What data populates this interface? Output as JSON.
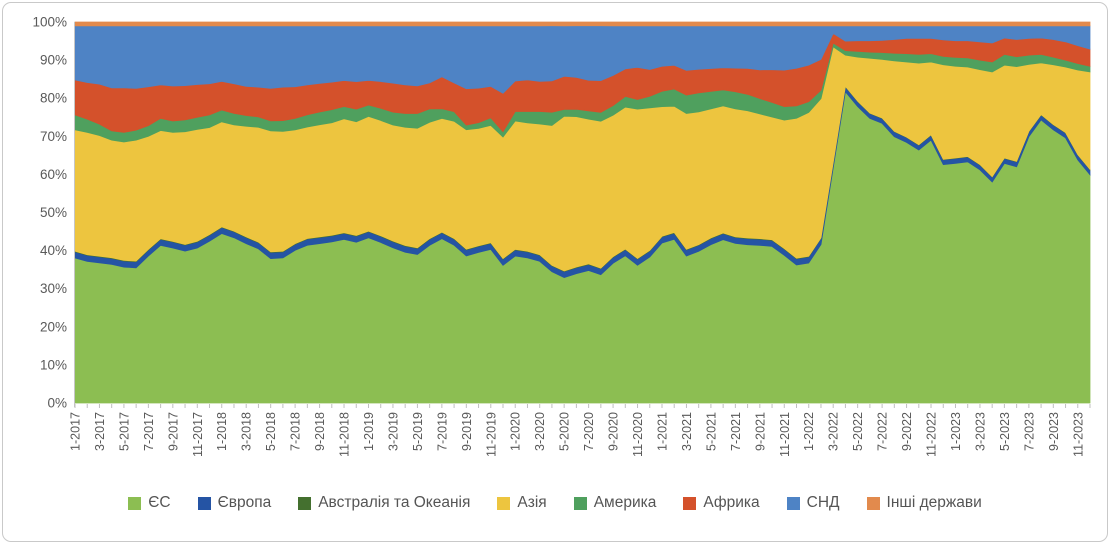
{
  "y_axis": {
    "ticks": [
      "0%",
      "10%",
      "20%",
      "30%",
      "40%",
      "50%",
      "60%",
      "70%",
      "80%",
      "90%",
      "100%"
    ]
  },
  "colors": {
    "axis_text": "#595959",
    "legend_text": "#555555",
    "axis_line": "#c6c6c6",
    "tick_line": "#bfbfbf",
    "card_border": "#c9c9c9"
  },
  "chart_data": {
    "type": "area",
    "stacking": "percent",
    "title": "",
    "xlabel": "",
    "ylabel": "",
    "ylim": [
      0,
      100
    ],
    "grid": false,
    "legend_position": "bottom",
    "x_label_every": 2,
    "x": [
      "1-2017",
      "2-2017",
      "3-2017",
      "4-2017",
      "5-2017",
      "6-2017",
      "7-2017",
      "8-2017",
      "9-2017",
      "10-2017",
      "11-2017",
      "12-2017",
      "1-2018",
      "2-2018",
      "3-2018",
      "4-2018",
      "5-2018",
      "6-2018",
      "7-2018",
      "8-2018",
      "9-2018",
      "10-2018",
      "11-2018",
      "12-2018",
      "1-2019",
      "2-2019",
      "3-2019",
      "4-2019",
      "5-2019",
      "6-2019",
      "7-2019",
      "8-2019",
      "9-2019",
      "10-2019",
      "11-2019",
      "12-2019",
      "1-2020",
      "2-2020",
      "3-2020",
      "4-2020",
      "5-2020",
      "6-2020",
      "7-2020",
      "8-2020",
      "9-2020",
      "10-2020",
      "11-2020",
      "12-2020",
      "1-2021",
      "2-2021",
      "3-2021",
      "4-2021",
      "5-2021",
      "6-2021",
      "7-2021",
      "8-2021",
      "9-2021",
      "10-2021",
      "11-2021",
      "12-2021",
      "1-2022",
      "2-2022",
      "3-2022",
      "4-2022",
      "5-2022",
      "6-2022",
      "7-2022",
      "8-2022",
      "9-2022",
      "10-2022",
      "11-2022",
      "12-2022",
      "1-2023",
      "2-2023",
      "3-2023",
      "4-2023",
      "5-2023",
      "6-2023",
      "7-2023",
      "8-2023",
      "9-2023",
      "10-2023",
      "11-2023",
      "12-2023"
    ],
    "series": [
      {
        "name": "ЄС",
        "color": "#8CBE52",
        "values": [
          38.1,
          37.2,
          36.8,
          36.4,
          35.7,
          35.5,
          38.6,
          41.4,
          40.7,
          39.9,
          40.7,
          42.5,
          44.5,
          43.4,
          41.6,
          40.3,
          37.7,
          38.1,
          39.9,
          41.2,
          41.6,
          42.1,
          42.8,
          42.1,
          43.4,
          42.1,
          40.7,
          39.4,
          38.6,
          41.2,
          43.8,
          41.2,
          38.4,
          39.4,
          40.1,
          35.9,
          38.6,
          38.1,
          37.5,
          35.5,
          33.3,
          34.6,
          35.5,
          34.4,
          37.2,
          38.6,
          35.9,
          38.1,
          41.6,
          42.8,
          38.6,
          39.9,
          41.6,
          42.9,
          41.9,
          41.4,
          41.2,
          40.7,
          38.4,
          35.9,
          36.4,
          41.2,
          61.7,
          81.7,
          77.8,
          74.7,
          73.4,
          69.9,
          68.4,
          66.4,
          69.0,
          62.5,
          62.9,
          63.3,
          61.2,
          58.0,
          62.9,
          62.0,
          69.9,
          74.3,
          71.7,
          69.6,
          63.8,
          59.9
        ]
      },
      {
        "name": "Європа",
        "color": "#2554A4",
        "values": [
          1.6,
          1.6,
          1.6,
          1.6,
          1.6,
          1.6,
          1.6,
          1.6,
          1.6,
          1.6,
          1.6,
          1.6,
          1.6,
          1.6,
          1.6,
          1.6,
          1.6,
          1.6,
          1.6,
          1.6,
          1.6,
          1.6,
          1.6,
          1.6,
          1.6,
          1.6,
          1.6,
          1.6,
          1.6,
          1.6,
          1.6,
          1.6,
          1.6,
          1.6,
          1.6,
          1.6,
          1.6,
          1.6,
          1.6,
          1.6,
          1.6,
          1.6,
          1.6,
          1.6,
          1.6,
          1.6,
          1.6,
          1.6,
          1.6,
          1.6,
          1.6,
          1.6,
          1.6,
          1.6,
          1.6,
          1.6,
          1.6,
          1.6,
          1.6,
          1.6,
          1.6,
          1.6,
          1.3,
          1.3,
          1.3,
          1.3,
          1.3,
          1.3,
          1.3,
          1.3,
          1.3,
          1.3,
          1.3,
          1.3,
          1.3,
          1.3,
          1.3,
          1.3,
          1.3,
          1.3,
          1.3,
          1.3,
          1.3,
          1.3
        ]
      },
      {
        "name": "Австралія та Океанія",
        "color": "#44702F",
        "values": [
          0.15,
          0.15,
          0.15,
          0.15,
          0.15,
          0.15,
          0.15,
          0.15,
          0.15,
          0.15,
          0.15,
          0.15,
          0.15,
          0.15,
          0.15,
          0.15,
          0.15,
          0.15,
          0.15,
          0.15,
          0.15,
          0.15,
          0.15,
          0.15,
          0.15,
          0.15,
          0.15,
          0.15,
          0.15,
          0.15,
          0.15,
          0.15,
          0.15,
          0.15,
          0.15,
          0.15,
          0.15,
          0.15,
          0.15,
          0.15,
          0.15,
          0.15,
          0.15,
          0.15,
          0.15,
          0.15,
          0.15,
          0.15,
          0.15,
          0.15,
          0.15,
          0.15,
          0.15,
          0.15,
          0.15,
          0.15,
          0.15,
          0.15,
          0.15,
          0.15,
          0.15,
          0.15,
          0.1,
          0.1,
          0.1,
          0.1,
          0.1,
          0.1,
          0.1,
          0.1,
          0.1,
          0.1,
          0.1,
          0.1,
          0.1,
          0.1,
          0.1,
          0.1,
          0.1,
          0.1,
          0.1,
          0.1,
          0.1,
          0.1
        ]
      },
      {
        "name": "Азія",
        "color": "#EDC53F",
        "values": [
          31.9,
          32.1,
          31.7,
          30.9,
          31.1,
          31.8,
          29.7,
          28.4,
          28.6,
          29.6,
          29.4,
          28.1,
          27.6,
          27.9,
          28.9,
          30.0,
          31.6,
          31.5,
          29.7,
          29.1,
          29.3,
          29.4,
          29.8,
          29.8,
          30.1,
          30.2,
          30.4,
          30.9,
          31.1,
          30.4,
          30.3,
          30.6,
          31.2,
          30.7,
          30.6,
          31.7,
          33.7,
          33.7,
          34.6,
          37.8,
          41.1,
          40.2,
          38.8,
          39.4,
          37.6,
          37.2,
          38.9,
          37.2,
          33.7,
          33.0,
          35.7,
          34.9,
          33.9,
          33.4,
          33.6,
          33.3,
          32.6,
          31.9,
          33.4,
          36.4,
          37.4,
          36.2,
          30.4,
          8.2,
          11.6,
          14.4,
          15.4,
          18.5,
          19.7,
          21.4,
          19.1,
          24.8,
          24.1,
          23.5,
          24.9,
          27.5,
          24.4,
          24.9,
          17.6,
          13.6,
          15.7,
          17.2,
          22.2,
          25.6
        ]
      },
      {
        "name": "Америка",
        "color": "#4FA05E",
        "values": [
          3.9,
          3.5,
          3.0,
          2.4,
          2.5,
          2.6,
          2.8,
          3.2,
          3.0,
          3.1,
          3.2,
          3.3,
          3.1,
          3.0,
          2.8,
          2.7,
          2.6,
          2.8,
          3.0,
          3.2,
          3.3,
          3.4,
          3.2,
          3.3,
          3.0,
          3.2,
          3.4,
          3.6,
          3.8,
          3.5,
          2.6,
          2.5,
          1.2,
          1.5,
          2.0,
          1.4,
          2.5,
          3.0,
          3.3,
          3.6,
          1.8,
          2.0,
          2.2,
          2.4,
          2.6,
          2.8,
          2.5,
          3.0,
          4.0,
          4.5,
          4.8,
          5.0,
          4.6,
          4.2,
          4.5,
          4.3,
          4.0,
          3.8,
          3.5,
          3.2,
          2.8,
          2.2,
          1.0,
          1.2,
          1.5,
          1.6,
          1.8,
          2.0,
          2.2,
          2.3,
          2.2,
          2.2,
          2.3,
          2.4,
          2.5,
          2.6,
          2.8,
          2.6,
          2.4,
          2.2,
          2.0,
          1.8,
          1.7,
          1.5
        ]
      },
      {
        "name": "Африка",
        "color": "#D4512B",
        "values": [
          9.2,
          9.6,
          10.5,
          11.3,
          11.7,
          11.0,
          10.2,
          8.8,
          9.2,
          9.0,
          8.6,
          8.2,
          7.5,
          7.8,
          7.6,
          7.8,
          8.5,
          8.8,
          8.3,
          7.8,
          7.5,
          7.2,
          6.8,
          7.2,
          6.5,
          7.0,
          7.6,
          7.5,
          7.2,
          6.8,
          8.5,
          7.5,
          9.5,
          9.0,
          8.2,
          10.0,
          8.0,
          8.3,
          8.0,
          8.5,
          8.8,
          8.5,
          8.2,
          8.5,
          8.0,
          7.2,
          8.4,
          7.0,
          6.5,
          6.2,
          6.5,
          6.2,
          6.0,
          5.8,
          6.2,
          6.8,
          7.5,
          8.5,
          9.5,
          9.8,
          9.5,
          8.0,
          2.5,
          2.5,
          2.8,
          3.0,
          3.2,
          3.6,
          4.0,
          4.2,
          4.0,
          4.3,
          4.4,
          4.5,
          4.8,
          5.0,
          4.3,
          4.5,
          4.4,
          4.3,
          4.6,
          4.8,
          4.7,
          4.5
        ]
      },
      {
        "name": "СНД",
        "color": "#4E83C5",
        "values": [
          14.2,
          14.9,
          15.3,
          16.3,
          16.3,
          16.4,
          16.0,
          15.5,
          15.8,
          15.7,
          15.4,
          15.2,
          14.6,
          15.2,
          15.8,
          16.0,
          16.3,
          16.1,
          15.9,
          15.4,
          15.0,
          14.7,
          14.3,
          14.6,
          14.3,
          14.6,
          15.0,
          15.4,
          15.6,
          14.9,
          13.6,
          14.9,
          16.4,
          16.3,
          15.8,
          17.6,
          14.5,
          14.2,
          14.7,
          14.9,
          13.4,
          13.8,
          14.6,
          14.7,
          13.2,
          11.3,
          10.8,
          11.4,
          10.5,
          10.3,
          11.7,
          11.4,
          11.2,
          11.0,
          11.1,
          11.1,
          11.5,
          11.4,
          11.5,
          11.0,
          10.2,
          8.7,
          2.0,
          4.0,
          3.9,
          3.9,
          3.8,
          3.6,
          3.3,
          3.3,
          3.3,
          3.7,
          3.9,
          3.9,
          4.2,
          4.5,
          3.2,
          3.6,
          3.3,
          3.2,
          3.6,
          4.2,
          5.2,
          6.1
        ]
      },
      {
        "name": "Інші держави",
        "color": "#E28A4D",
        "values": [
          1.0,
          1.0,
          1.0,
          1.0,
          1.0,
          1.0,
          1.0,
          1.0,
          1.0,
          1.0,
          1.0,
          1.0,
          1.0,
          1.0,
          1.0,
          1.0,
          1.0,
          1.0,
          1.0,
          1.0,
          1.0,
          1.0,
          1.0,
          1.0,
          1.0,
          1.0,
          1.0,
          1.0,
          1.0,
          1.0,
          1.0,
          1.0,
          1.0,
          1.0,
          1.0,
          1.0,
          1.0,
          1.0,
          1.0,
          1.0,
          1.0,
          1.0,
          1.0,
          1.0,
          1.0,
          1.0,
          1.0,
          1.0,
          1.0,
          1.0,
          1.0,
          1.0,
          1.0,
          1.0,
          1.0,
          1.0,
          1.0,
          1.0,
          1.0,
          1.0,
          1.0,
          1.0,
          1.0,
          1.0,
          1.0,
          1.0,
          1.0,
          1.0,
          1.0,
          1.0,
          1.0,
          1.0,
          1.0,
          1.0,
          1.0,
          1.0,
          1.0,
          1.0,
          1.0,
          1.0,
          1.0,
          1.0,
          1.0,
          1.0
        ]
      }
    ]
  }
}
